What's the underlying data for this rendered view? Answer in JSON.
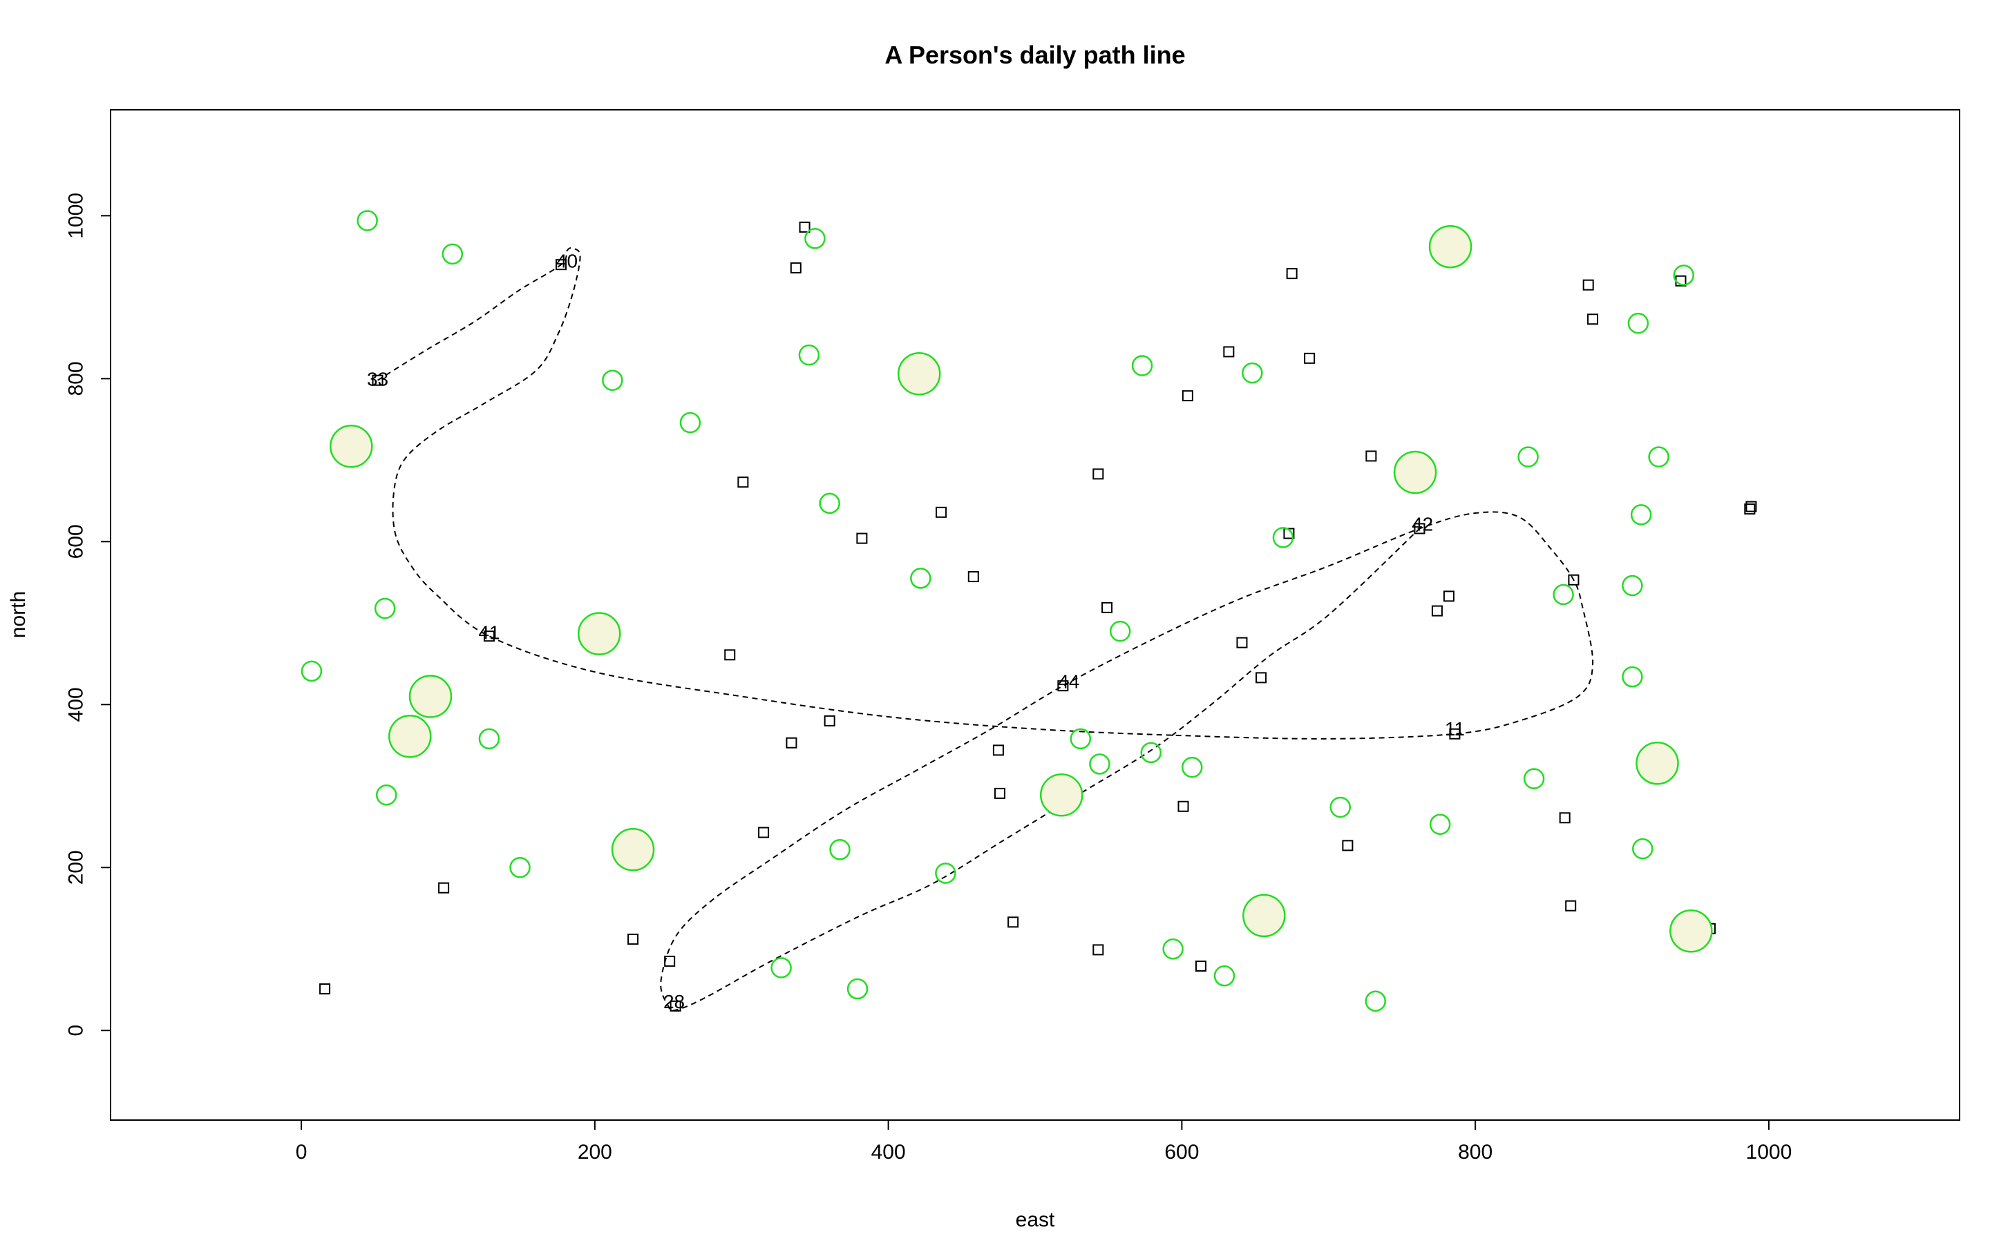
{
  "chart_data": {
    "type": "scatter",
    "title": "A Person's daily path line",
    "xlabel": "east",
    "ylabel": "north",
    "xlim": [
      -130,
      1130
    ],
    "ylim": [
      -110,
      1130
    ],
    "x_ticks": [
      0,
      200,
      400,
      600,
      800,
      1000
    ],
    "y_ticks": [
      0,
      200,
      400,
      600,
      800,
      1000
    ],
    "grid": false,
    "colors": {
      "circle_stroke": "#22dd22",
      "circle_fill": "#f5f5dc",
      "square_stroke": "#000000",
      "path_stroke": "#000000"
    },
    "squares": [
      [
        16,
        51
      ],
      [
        97,
        175
      ],
      [
        226,
        112
      ],
      [
        251,
        85
      ],
      [
        292,
        461
      ],
      [
        301,
        673
      ],
      [
        315,
        243
      ],
      [
        334,
        353
      ],
      [
        337,
        936
      ],
      [
        343,
        986
      ],
      [
        360,
        380
      ],
      [
        382,
        604
      ],
      [
        436,
        636
      ],
      [
        458,
        557
      ],
      [
        475,
        344
      ],
      [
        476,
        291
      ],
      [
        485,
        133
      ],
      [
        519,
        423
      ],
      [
        543,
        99
      ],
      [
        543,
        683
      ],
      [
        549,
        519
      ],
      [
        601,
        275
      ],
      [
        604,
        779
      ],
      [
        613,
        79
      ],
      [
        632,
        833
      ],
      [
        641,
        476
      ],
      [
        654,
        433
      ],
      [
        675,
        929
      ],
      [
        687,
        825
      ],
      [
        713,
        227
      ],
      [
        729,
        705
      ],
      [
        774,
        515
      ],
      [
        782,
        533
      ],
      [
        786,
        364
      ],
      [
        861,
        261
      ],
      [
        865,
        153
      ],
      [
        867,
        553
      ],
      [
        877,
        915
      ],
      [
        880,
        873
      ],
      [
        940,
        920
      ],
      [
        960,
        125
      ],
      [
        987,
        640
      ],
      [
        988,
        643
      ],
      [
        128,
        484
      ],
      [
        177,
        940
      ],
      [
        52,
        798
      ],
      [
        255,
        30
      ],
      [
        673,
        610
      ],
      [
        762,
        616
      ]
    ],
    "circles": [
      {
        "x": 45,
        "y": 994,
        "size": 1
      },
      {
        "x": 103,
        "y": 953,
        "size": 1
      },
      {
        "x": 350,
        "y": 972,
        "size": 1
      },
      {
        "x": 783,
        "y": 962,
        "size": 2
      },
      {
        "x": 942,
        "y": 927,
        "size": 1
      },
      {
        "x": 911,
        "y": 868,
        "size": 1
      },
      {
        "x": 346,
        "y": 829,
        "size": 1
      },
      {
        "x": 421,
        "y": 806,
        "size": 2
      },
      {
        "x": 212,
        "y": 798,
        "size": 1
      },
      {
        "x": 573,
        "y": 816,
        "size": 1
      },
      {
        "x": 648,
        "y": 807,
        "size": 1
      },
      {
        "x": 265,
        "y": 746,
        "size": 1
      },
      {
        "x": 34,
        "y": 717,
        "size": 2
      },
      {
        "x": 759,
        "y": 685,
        "size": 2
      },
      {
        "x": 836,
        "y": 704,
        "size": 1
      },
      {
        "x": 925,
        "y": 704,
        "size": 1
      },
      {
        "x": 360,
        "y": 647,
        "size": 1
      },
      {
        "x": 913,
        "y": 633,
        "size": 1
      },
      {
        "x": 669,
        "y": 605,
        "size": 1
      },
      {
        "x": 422,
        "y": 555,
        "size": 1
      },
      {
        "x": 907,
        "y": 546,
        "size": 1
      },
      {
        "x": 860,
        "y": 535,
        "size": 1
      },
      {
        "x": 57,
        "y": 518,
        "size": 1
      },
      {
        "x": 203,
        "y": 487,
        "size": 2
      },
      {
        "x": 558,
        "y": 490,
        "size": 1
      },
      {
        "x": 7,
        "y": 441,
        "size": 1
      },
      {
        "x": 907,
        "y": 434,
        "size": 1
      },
      {
        "x": 88,
        "y": 410,
        "size": 2
      },
      {
        "x": 74,
        "y": 361,
        "size": 2
      },
      {
        "x": 128,
        "y": 358,
        "size": 1
      },
      {
        "x": 531,
        "y": 358,
        "size": 1
      },
      {
        "x": 579,
        "y": 341,
        "size": 1
      },
      {
        "x": 544,
        "y": 327,
        "size": 1
      },
      {
        "x": 607,
        "y": 323,
        "size": 1
      },
      {
        "x": 924,
        "y": 328,
        "size": 2
      },
      {
        "x": 840,
        "y": 309,
        "size": 1
      },
      {
        "x": 58,
        "y": 289,
        "size": 1
      },
      {
        "x": 518,
        "y": 289,
        "size": 2
      },
      {
        "x": 708,
        "y": 274,
        "size": 1
      },
      {
        "x": 776,
        "y": 253,
        "size": 1
      },
      {
        "x": 226,
        "y": 222,
        "size": 2
      },
      {
        "x": 367,
        "y": 222,
        "size": 1
      },
      {
        "x": 914,
        "y": 223,
        "size": 1
      },
      {
        "x": 149,
        "y": 200,
        "size": 1
      },
      {
        "x": 439,
        "y": 193,
        "size": 1
      },
      {
        "x": 656,
        "y": 141,
        "size": 2
      },
      {
        "x": 947,
        "y": 122,
        "size": 2
      },
      {
        "x": 594,
        "y": 100,
        "size": 1
      },
      {
        "x": 327,
        "y": 77,
        "size": 1
      },
      {
        "x": 629,
        "y": 67,
        "size": 1
      },
      {
        "x": 379,
        "y": 51,
        "size": 1
      },
      {
        "x": 732,
        "y": 36,
        "size": 1
      }
    ],
    "path_curve": [
      [
        52,
        798
      ],
      [
        85,
        835
      ],
      [
        118,
        870
      ],
      [
        148,
        908
      ],
      [
        177,
        940
      ],
      [
        181,
        957
      ],
      [
        185,
        960
      ],
      [
        190,
        950
      ],
      [
        185,
        905
      ],
      [
        175,
        855
      ],
      [
        160,
        810
      ],
      [
        125,
        770
      ],
      [
        92,
        735
      ],
      [
        70,
        700
      ],
      [
        63,
        660
      ],
      [
        64,
        610
      ],
      [
        75,
        570
      ],
      [
        92,
        535
      ],
      [
        128,
        484
      ],
      [
        200,
        440
      ],
      [
        300,
        410
      ],
      [
        400,
        385
      ],
      [
        500,
        370
      ],
      [
        600,
        362
      ],
      [
        700,
        358
      ],
      [
        786,
        364
      ],
      [
        830,
        380
      ],
      [
        870,
        410
      ],
      [
        880,
        450
      ],
      [
        873,
        520
      ],
      [
        867,
        553
      ],
      [
        852,
        590
      ],
      [
        830,
        630
      ],
      [
        800,
        635
      ],
      [
        762,
        616
      ],
      [
        700,
        570
      ],
      [
        640,
        530
      ],
      [
        580,
        480
      ],
      [
        519,
        423
      ],
      [
        470,
        370
      ],
      [
        420,
        320
      ],
      [
        370,
        270
      ],
      [
        320,
        210
      ],
      [
        280,
        160
      ],
      [
        255,
        115
      ],
      [
        245,
        60
      ],
      [
        250,
        30
      ],
      [
        255,
        25
      ],
      [
        275,
        40
      ],
      [
        320,
        85
      ],
      [
        380,
        140
      ],
      [
        430,
        180
      ],
      [
        480,
        235
      ],
      [
        530,
        290
      ],
      [
        580,
        345
      ],
      [
        620,
        400
      ],
      [
        660,
        460
      ],
      [
        700,
        510
      ],
      [
        762,
        616
      ]
    ],
    "path_labels": [
      {
        "label": "33",
        "x": 52,
        "y": 798
      },
      {
        "label": "40",
        "x": 181,
        "y": 943
      },
      {
        "label": "41",
        "x": 128,
        "y": 487
      },
      {
        "label": "44",
        "x": 523,
        "y": 427
      },
      {
        "label": "42",
        "x": 764,
        "y": 620
      },
      {
        "label": "11",
        "x": 786,
        "y": 369
      },
      {
        "label": "28",
        "x": 254,
        "y": 34
      }
    ]
  }
}
